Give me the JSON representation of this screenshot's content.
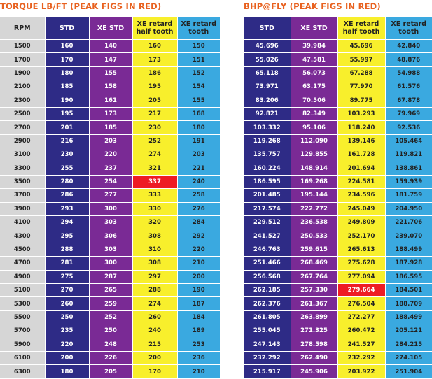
{
  "torque": {
    "title": "TORQUE LB/FT (PEAK FIGS IN RED)",
    "headers": [
      "RPM",
      "STD",
      "XE STD",
      "XE retard half tooth",
      "XE retard tooth"
    ],
    "peak": {
      "row": 10,
      "col": 3
    },
    "rows": [
      [
        "1500",
        "160",
        "140",
        "160",
        "150"
      ],
      [
        "1700",
        "170",
        "147",
        "173",
        "151"
      ],
      [
        "1900",
        "180",
        "155",
        "186",
        "152"
      ],
      [
        "2100",
        "185",
        "158",
        "195",
        "154"
      ],
      [
        "2300",
        "190",
        "161",
        "205",
        "155"
      ],
      [
        "2500",
        "195",
        "173",
        "217",
        "168"
      ],
      [
        "2700",
        "201",
        "185",
        "230",
        "180"
      ],
      [
        "2900",
        "216",
        "203",
        "252",
        "191"
      ],
      [
        "3100",
        "230",
        "220",
        "274",
        "203"
      ],
      [
        "3300",
        "255",
        "237",
        "321",
        "221"
      ],
      [
        "3500",
        "280",
        "254",
        "337",
        "240"
      ],
      [
        "3700",
        "286",
        "277",
        "333",
        "258"
      ],
      [
        "3900",
        "293",
        "300",
        "330",
        "276"
      ],
      [
        "4100",
        "294",
        "303",
        "320",
        "284"
      ],
      [
        "4300",
        "295",
        "306",
        "308",
        "292"
      ],
      [
        "4500",
        "288",
        "303",
        "310",
        "220"
      ],
      [
        "4700",
        "281",
        "300",
        "308",
        "210"
      ],
      [
        "4900",
        "275",
        "287",
        "297",
        "200"
      ],
      [
        "5100",
        "270",
        "265",
        "288",
        "190"
      ],
      [
        "5300",
        "260",
        "259",
        "274",
        "187"
      ],
      [
        "5500",
        "250",
        "252",
        "260",
        "184"
      ],
      [
        "5700",
        "235",
        "250",
        "240",
        "189"
      ],
      [
        "5900",
        "220",
        "248",
        "215",
        "253"
      ],
      [
        "6100",
        "200",
        "226",
        "200",
        "236"
      ],
      [
        "6300",
        "180",
        "205",
        "170",
        "210"
      ]
    ]
  },
  "bhp": {
    "title": "BHP@FLY (PEAK FIGS IN RED)",
    "headers": [
      "STD",
      "XE STD",
      "XE retard half tooth",
      "XE retard tooth"
    ],
    "peak": {
      "row": 18,
      "col": 2
    },
    "rows": [
      [
        "45.696",
        "39.984",
        "45.696",
        "42.840"
      ],
      [
        "55.026",
        "47.581",
        "55.997",
        "48.876"
      ],
      [
        "65.118",
        "56.073",
        "67.288",
        "54.988"
      ],
      [
        "73.971",
        "63.175",
        "77.970",
        "61.576"
      ],
      [
        "83.206",
        "70.506",
        "89.775",
        "67.878"
      ],
      [
        "92.821",
        "82.349",
        "103.293",
        "79.969"
      ],
      [
        "103.332",
        "95.106",
        "118.240",
        "92.536"
      ],
      [
        "119.268",
        "112.090",
        "139.146",
        "105.464"
      ],
      [
        "135.757",
        "129.855",
        "161.728",
        "119.821"
      ],
      [
        "160.224",
        "148.914",
        "201.694",
        "138.861"
      ],
      [
        "186.595",
        "169.268",
        "224.581",
        "159.939"
      ],
      [
        "201.485",
        "195.144",
        "234.596",
        "181.759"
      ],
      [
        "217.574",
        "222.772",
        "245.049",
        "204.950"
      ],
      [
        "229.512",
        "236.538",
        "249.809",
        "221.706"
      ],
      [
        "241.527",
        "250.533",
        "252.170",
        "239.070"
      ],
      [
        "246.763",
        "259.615",
        "265.613",
        "188.499"
      ],
      [
        "251.466",
        "268.469",
        "275.628",
        "187.928"
      ],
      [
        "256.568",
        "267.764",
        "277.094",
        "186.595"
      ],
      [
        "262.185",
        "257.330",
        "279.664",
        "184.501"
      ],
      [
        "262.376",
        "261.367",
        "276.504",
        "188.709"
      ],
      [
        "261.805",
        "263.899",
        "272.277",
        "188.499"
      ],
      [
        "255.045",
        "271.325",
        "260.472",
        "205.121"
      ],
      [
        "247.143",
        "278.598",
        "241.527",
        "284.215"
      ],
      [
        "232.292",
        "262.490",
        "232.292",
        "274.105"
      ],
      [
        "215.917",
        "245.906",
        "203.922",
        "251.904"
      ]
    ]
  }
}
